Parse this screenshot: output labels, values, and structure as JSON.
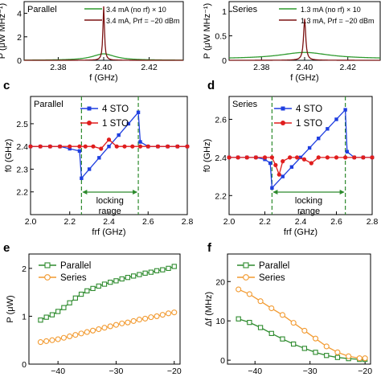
{
  "panel_letters": {
    "c": "c",
    "d": "d",
    "e": "e",
    "f": "f"
  },
  "chart_data": [
    {
      "id": "top_left",
      "type": "line",
      "panel_label": "Parallel",
      "xlabel": "f (GHz)",
      "ylabel": "P (μW MHz⁻¹)",
      "xlim": [
        2.365,
        2.435
      ],
      "ylim": [
        0,
        5
      ],
      "xticks": [
        2.38,
        2.4,
        2.42
      ],
      "yticks": [
        0,
        2,
        4
      ],
      "series": [
        {
          "name": "3.4 mA (no rf) × 10",
          "color": "#2f9a2f",
          "kind": "lorentz",
          "center": 2.4,
          "peak": 0.55,
          "hw": 0.006,
          "base": 0.0
        },
        {
          "name": "3.4 mA, Prf = −20 dBm",
          "color": "#7b1212",
          "kind": "lorentz",
          "center": 2.4,
          "peak": 4.6,
          "hw": 0.0004,
          "base": 0.0
        }
      ]
    },
    {
      "id": "top_right",
      "type": "line",
      "panel_label": "Series",
      "xlabel": "f (GHz)",
      "ylabel": "P (μW MHz⁻¹)",
      "xlim": [
        2.365,
        2.435
      ],
      "ylim": [
        0,
        1.2
      ],
      "xticks": [
        2.38,
        2.4,
        2.42
      ],
      "yticks": [
        0,
        0.5,
        1
      ],
      "series": [
        {
          "name": "1.3 mA (no rf) × 10",
          "color": "#2f9a2f",
          "kind": "lorentz",
          "center": 2.4,
          "peak": 0.13,
          "hw": 0.014,
          "base": 0.03
        },
        {
          "name": "1.3 mA, Prf = −20 dBm",
          "color": "#7b1212",
          "kind": "lorentz",
          "center": 2.4,
          "peak": 0.85,
          "hw": 0.0006,
          "base": 0.0
        }
      ]
    },
    {
      "id": "c",
      "type": "line",
      "panel_label": "Parallel",
      "xlabel": "frf (GHz)",
      "ylabel": "f0 (GHz)",
      "xlim": [
        2.0,
        2.8
      ],
      "ylim": [
        2.1,
        2.62
      ],
      "xticks": [
        2.0,
        2.2,
        2.4,
        2.6,
        2.8
      ],
      "yticks": [
        2.2,
        2.3,
        2.4,
        2.5
      ],
      "lock_range": [
        2.26,
        2.55
      ],
      "annotation": "locking range",
      "series": [
        {
          "name": "4 STO",
          "color": "#1f3fe0",
          "marker": "square",
          "x": [
            2.0,
            2.05,
            2.1,
            2.15,
            2.2,
            2.25,
            2.26,
            2.3,
            2.35,
            2.4,
            2.45,
            2.5,
            2.55,
            2.56,
            2.6,
            2.65,
            2.7,
            2.75,
            2.8
          ],
          "y": [
            2.4,
            2.4,
            2.4,
            2.4,
            2.39,
            2.38,
            2.26,
            2.3,
            2.35,
            2.4,
            2.45,
            2.5,
            2.55,
            2.42,
            2.4,
            2.4,
            2.4,
            2.4,
            2.4
          ]
        },
        {
          "name": "1 STO",
          "color": "#e01d1d",
          "marker": "circle",
          "x": [
            2.0,
            2.05,
            2.1,
            2.15,
            2.2,
            2.25,
            2.28,
            2.32,
            2.36,
            2.4,
            2.44,
            2.48,
            2.52,
            2.56,
            2.6,
            2.65,
            2.7,
            2.75,
            2.8
          ],
          "y": [
            2.4,
            2.4,
            2.4,
            2.4,
            2.4,
            2.4,
            2.4,
            2.4,
            2.39,
            2.43,
            2.4,
            2.4,
            2.4,
            2.4,
            2.4,
            2.4,
            2.4,
            2.4,
            2.4
          ]
        }
      ]
    },
    {
      "id": "d",
      "type": "line",
      "panel_label": "Series",
      "xlabel": "frf (GHz)",
      "ylabel": "f0 (GHz)",
      "xlim": [
        2.0,
        2.8
      ],
      "ylim": [
        2.1,
        2.72
      ],
      "xticks": [
        2.0,
        2.2,
        2.4,
        2.6,
        2.8
      ],
      "yticks": [
        2.2,
        2.4,
        2.6
      ],
      "lock_range": [
        2.24,
        2.65
      ],
      "annotation": "locking range",
      "series": [
        {
          "name": "4 STO",
          "color": "#1f3fe0",
          "marker": "square",
          "x": [
            2.0,
            2.05,
            2.1,
            2.15,
            2.2,
            2.23,
            2.24,
            2.3,
            2.35,
            2.4,
            2.45,
            2.5,
            2.55,
            2.6,
            2.65,
            2.66,
            2.7,
            2.75,
            2.8
          ],
          "y": [
            2.4,
            2.4,
            2.4,
            2.4,
            2.39,
            2.37,
            2.24,
            2.3,
            2.35,
            2.4,
            2.45,
            2.5,
            2.55,
            2.6,
            2.65,
            2.43,
            2.4,
            2.4,
            2.4
          ]
        },
        {
          "name": "1 STO",
          "color": "#e01d1d",
          "marker": "circle",
          "x": [
            2.0,
            2.05,
            2.1,
            2.15,
            2.2,
            2.24,
            2.26,
            2.28,
            2.3,
            2.34,
            2.38,
            2.42,
            2.46,
            2.5,
            2.55,
            2.6,
            2.65,
            2.7,
            2.75,
            2.8
          ],
          "y": [
            2.4,
            2.4,
            2.4,
            2.4,
            2.4,
            2.4,
            2.36,
            2.31,
            2.38,
            2.4,
            2.4,
            2.39,
            2.37,
            2.4,
            2.4,
            2.4,
            2.4,
            2.4,
            2.4,
            2.4
          ]
        }
      ]
    },
    {
      "id": "e",
      "type": "line",
      "xlabel": "",
      "ylabel": "P (μW)",
      "xlim": [
        -45,
        -19
      ],
      "ylim": [
        0,
        2.3
      ],
      "xticks": [
        -40,
        -30,
        -20
      ],
      "xticklabels": [
        "−40",
        "−30",
        "−20"
      ],
      "yticks": [
        0,
        1,
        2
      ],
      "series": [
        {
          "name": "Parallel",
          "color": "#2e8b2e",
          "marker": "open-square",
          "x": [
            -43,
            -42,
            -41,
            -40,
            -39,
            -38,
            -37,
            -36,
            -35,
            -34,
            -33,
            -32,
            -31,
            -30,
            -29,
            -28,
            -27,
            -26,
            -25,
            -24,
            -23,
            -22,
            -21,
            -20
          ],
          "y": [
            0.92,
            0.98,
            1.03,
            1.1,
            1.18,
            1.28,
            1.38,
            1.46,
            1.53,
            1.58,
            1.63,
            1.67,
            1.71,
            1.74,
            1.78,
            1.81,
            1.84,
            1.87,
            1.9,
            1.92,
            1.95,
            1.97,
            2.0,
            2.04
          ]
        },
        {
          "name": "Series",
          "color": "#f29a30",
          "marker": "open-circle",
          "x": [
            -43,
            -42,
            -41,
            -40,
            -39,
            -38,
            -37,
            -36,
            -35,
            -34,
            -33,
            -32,
            -31,
            -30,
            -29,
            -28,
            -27,
            -26,
            -25,
            -24,
            -23,
            -22,
            -21,
            -20
          ],
          "y": [
            0.46,
            0.48,
            0.5,
            0.52,
            0.55,
            0.58,
            0.61,
            0.64,
            0.67,
            0.7,
            0.73,
            0.76,
            0.79,
            0.82,
            0.85,
            0.87,
            0.9,
            0.93,
            0.95,
            0.98,
            1.0,
            1.03,
            1.06,
            1.08
          ]
        }
      ]
    },
    {
      "id": "f",
      "type": "line",
      "xlabel": "",
      "ylabel": "Δf (MHz)",
      "xlim": [
        -45,
        -19
      ],
      "ylim": [
        -1,
        27
      ],
      "xticks": [
        -40,
        -30,
        -20
      ],
      "xticklabels": [
        "−40",
        "−30",
        "−20"
      ],
      "yticks": [
        0,
        10,
        20
      ],
      "series": [
        {
          "name": "Parallel",
          "color": "#2e8b2e",
          "marker": "open-square",
          "x": [
            -43,
            -41,
            -39,
            -37,
            -35,
            -33,
            -31,
            -29,
            -27,
            -25,
            -23,
            -21,
            -20
          ],
          "y": [
            10.5,
            9.6,
            8.3,
            6.8,
            5.4,
            4.1,
            3.0,
            2.0,
            1.2,
            0.7,
            0.4,
            0.2,
            0.2
          ]
        },
        {
          "name": "Series",
          "color": "#f29a30",
          "marker": "open-circle",
          "x": [
            -43,
            -41,
            -39,
            -37,
            -35,
            -33,
            -31,
            -29,
            -27,
            -25,
            -23,
            -21,
            -20
          ],
          "y": [
            18.0,
            16.8,
            15.0,
            13.2,
            11.5,
            9.5,
            7.5,
            5.5,
            3.5,
            2.0,
            1.0,
            0.5,
            0.5
          ]
        }
      ]
    }
  ]
}
